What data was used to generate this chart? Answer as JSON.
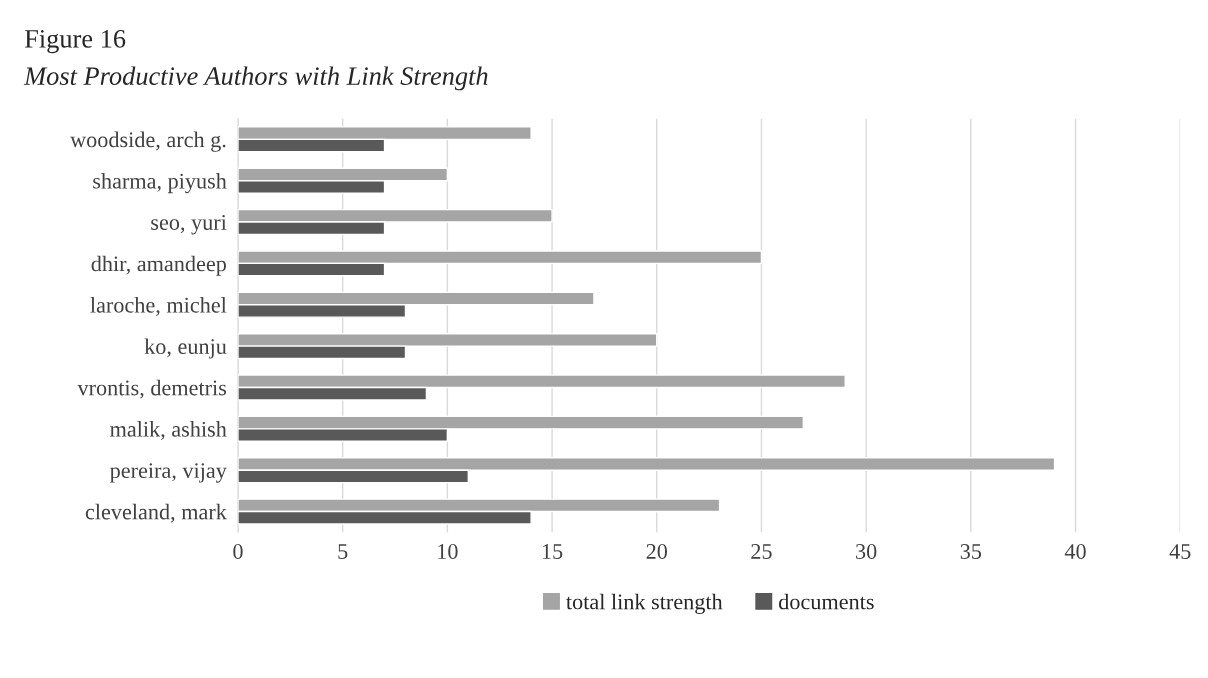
{
  "chart_data": {
    "type": "bar",
    "orientation": "horizontal",
    "title": "Figure 16",
    "subtitle": "Most Productive Authors with Link Strength",
    "categories": [
      "woodside, arch g.",
      "sharma, piyush",
      "seo, yuri",
      "dhir, amandeep",
      "laroche, michel",
      "ko, eunju",
      "vrontis, demetris",
      "malik, ashish",
      "pereira, vijay",
      "cleveland, mark"
    ],
    "series": [
      {
        "name": "total link strength",
        "color": "#a5a5a5",
        "values": [
          14,
          10,
          15,
          25,
          17,
          20,
          29,
          27,
          39,
          23
        ]
      },
      {
        "name": "documents",
        "color": "#595959",
        "values": [
          7,
          7,
          7,
          7,
          8,
          8,
          9,
          10,
          11,
          14
        ]
      }
    ],
    "xlim": [
      0,
      45
    ],
    "xticks": [
      0,
      5,
      10,
      15,
      20,
      25,
      30,
      35,
      40,
      45
    ],
    "grid": "x",
    "legend": "bottom"
  }
}
